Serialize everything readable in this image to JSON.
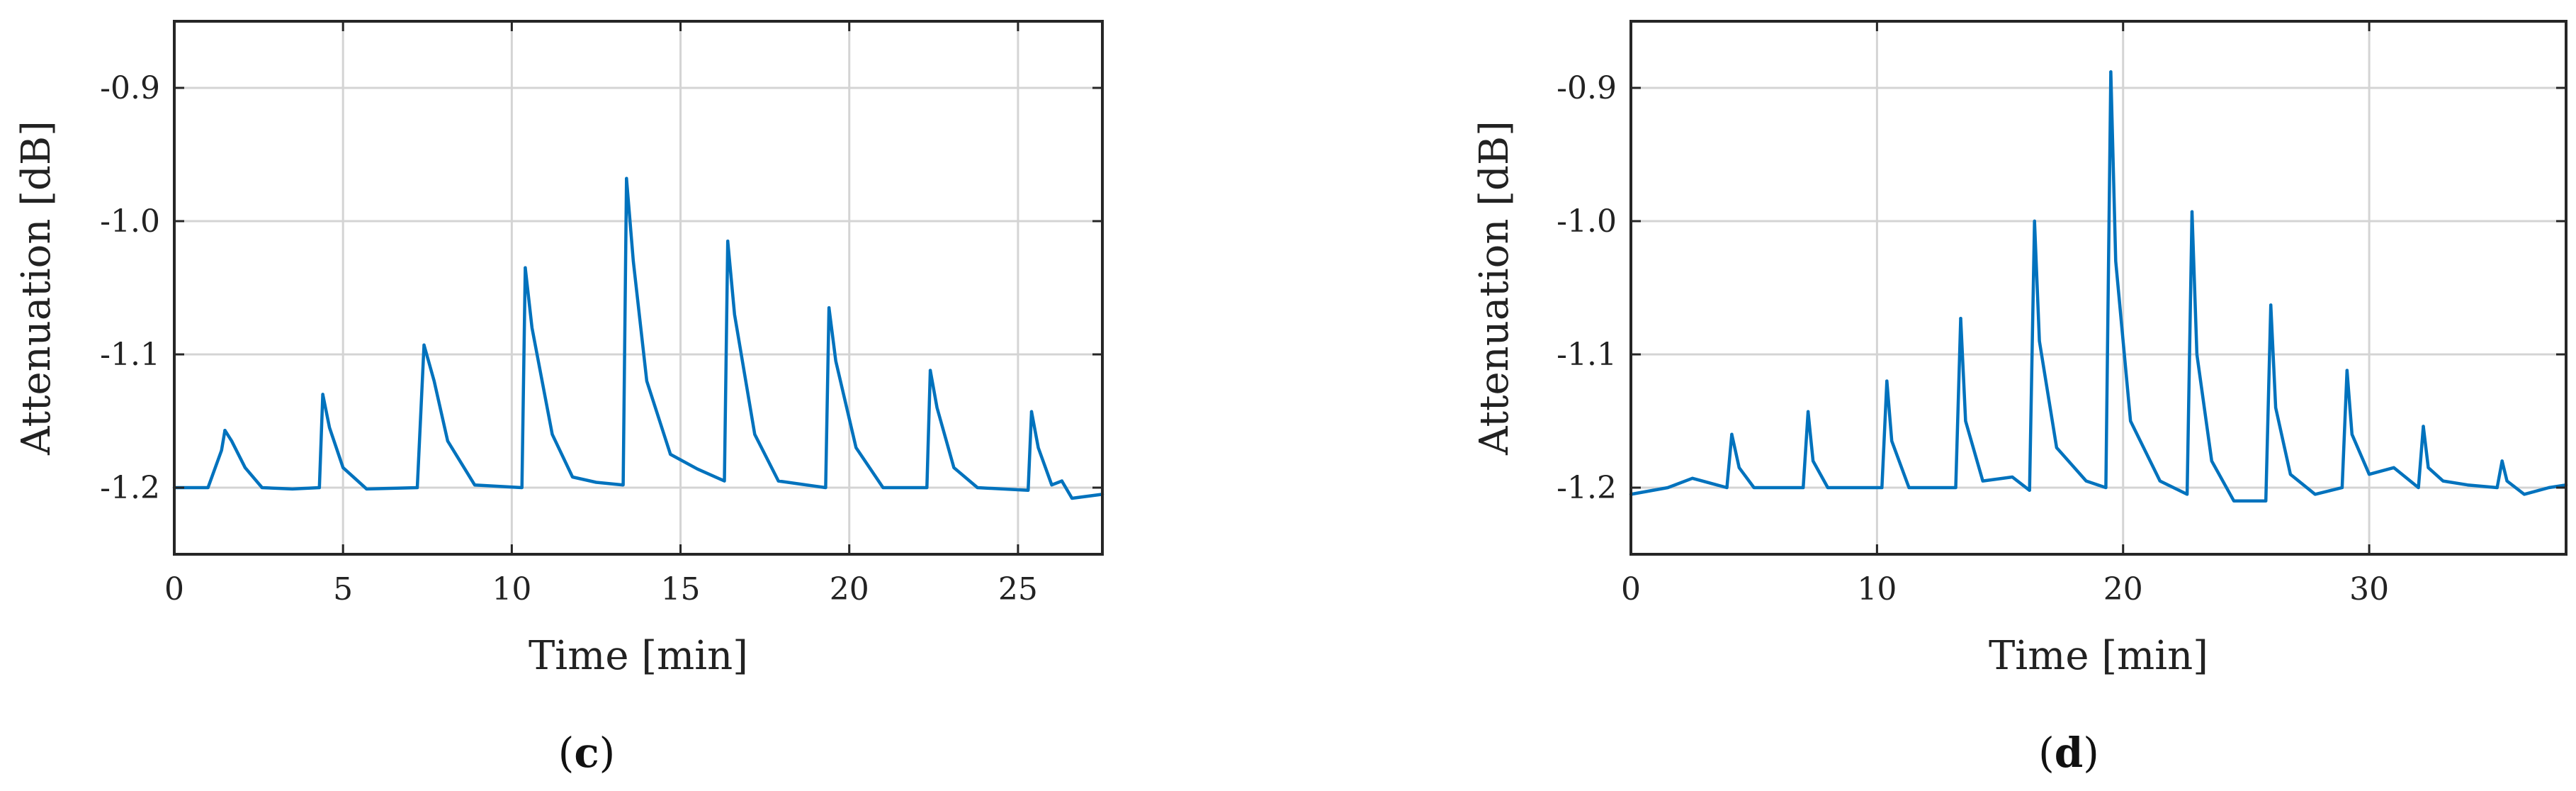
{
  "chart_data": [
    {
      "type": "line",
      "panel_label": "c",
      "xlabel": "Time [min]",
      "ylabel": "Attenuation [dB]",
      "xlim": [
        0,
        27.5
      ],
      "ylim": [
        -1.25,
        -0.85
      ],
      "xticks": [
        0,
        5,
        10,
        15,
        20,
        25
      ],
      "xtick_labels": [
        "0",
        "5",
        "10",
        "15",
        "20",
        "25"
      ],
      "yticks": [
        -0.9,
        -1.0,
        -1.1,
        -1.2
      ],
      "ytick_labels": [
        "-0.9",
        "-1.0",
        "-1.1",
        "-1.2"
      ],
      "grid": true,
      "color": "#0072BD",
      "baseline": -1.2,
      "peaks": [
        {
          "x": 1.5,
          "y": -1.157
        },
        {
          "x": 4.4,
          "y": -1.13
        },
        {
          "x": 7.4,
          "y": -1.093
        },
        {
          "x": 10.4,
          "y": -1.035
        },
        {
          "x": 13.4,
          "y": -0.968
        },
        {
          "x": 16.4,
          "y": -1.015
        },
        {
          "x": 19.4,
          "y": -1.065
        },
        {
          "x": 22.4,
          "y": -1.112
        },
        {
          "x": 25.4,
          "y": -1.143
        },
        {
          "x": 26.3,
          "y": -1.195
        }
      ],
      "series": [
        {
          "x": [
            0,
            1.0,
            1.4,
            1.5,
            1.7,
            2.1,
            2.6,
            3.5,
            4.3,
            4.4,
            4.6,
            5.0,
            5.7,
            7.2,
            7.4,
            7.7,
            8.1,
            8.9,
            10.3,
            10.4,
            10.6,
            11.2,
            11.8,
            12.5,
            13.3,
            13.4,
            13.6,
            14.0,
            14.7,
            15.5,
            16.3,
            16.4,
            16.6,
            17.2,
            17.9,
            19.3,
            19.4,
            19.6,
            20.2,
            21.0,
            22.3,
            22.4,
            22.6,
            23.1,
            23.8,
            25.3,
            25.4,
            25.6,
            26.0,
            26.3,
            26.6,
            27.5
          ],
          "y": [
            -1.2,
            -1.2,
            -1.172,
            -1.157,
            -1.165,
            -1.185,
            -1.2,
            -1.201,
            -1.2,
            -1.13,
            -1.155,
            -1.185,
            -1.201,
            -1.2,
            -1.093,
            -1.12,
            -1.165,
            -1.198,
            -1.2,
            -1.035,
            -1.08,
            -1.16,
            -1.192,
            -1.196,
            -1.198,
            -0.968,
            -1.03,
            -1.12,
            -1.175,
            -1.186,
            -1.195,
            -1.015,
            -1.07,
            -1.16,
            -1.195,
            -1.2,
            -1.065,
            -1.105,
            -1.17,
            -1.2,
            -1.2,
            -1.112,
            -1.14,
            -1.185,
            -1.2,
            -1.202,
            -1.143,
            -1.17,
            -1.198,
            -1.195,
            -1.208,
            -1.205
          ]
        }
      ]
    },
    {
      "type": "line",
      "panel_label": "d",
      "xlabel": "Time [min]",
      "ylabel": "Attenuation [dB]",
      "xlim": [
        0,
        38
      ],
      "ylim": [
        -1.25,
        -0.85
      ],
      "xticks": [
        0,
        10,
        20,
        30
      ],
      "xtick_labels": [
        "0",
        "10",
        "20",
        "30"
      ],
      "yticks": [
        -0.9,
        -1.0,
        -1.1,
        -1.2
      ],
      "ytick_labels": [
        "-0.9",
        "-1.0",
        "-1.1",
        "-1.2"
      ],
      "grid": true,
      "color": "#0072BD",
      "baseline": -1.2,
      "peaks": [
        {
          "x": 4.1,
          "y": -1.16
        },
        {
          "x": 7.2,
          "y": -1.143
        },
        {
          "x": 10.4,
          "y": -1.12
        },
        {
          "x": 13.4,
          "y": -1.073
        },
        {
          "x": 16.4,
          "y": -1.0
        },
        {
          "x": 19.5,
          "y": -0.888
        },
        {
          "x": 22.8,
          "y": -0.993
        },
        {
          "x": 26.0,
          "y": -1.063
        },
        {
          "x": 29.1,
          "y": -1.112
        },
        {
          "x": 32.2,
          "y": -1.154
        },
        {
          "x": 35.4,
          "y": -1.18
        }
      ],
      "series": [
        {
          "x": [
            0,
            1.5,
            2.5,
            3.9,
            4.1,
            4.4,
            5.0,
            7.0,
            7.2,
            7.4,
            8.0,
            10.2,
            10.4,
            10.6,
            11.3,
            13.2,
            13.4,
            13.6,
            14.3,
            15.5,
            16.2,
            16.4,
            16.6,
            17.3,
            18.5,
            19.3,
            19.5,
            19.7,
            20.3,
            21.5,
            22.6,
            22.8,
            23.0,
            23.6,
            24.5,
            25.8,
            26.0,
            26.2,
            26.8,
            27.8,
            28.9,
            29.1,
            29.3,
            30.0,
            31.0,
            32.0,
            32.2,
            32.4,
            33.0,
            34.0,
            35.2,
            35.4,
            35.6,
            36.3,
            37.3,
            38.0
          ],
          "y": [
            -1.205,
            -1.2,
            -1.193,
            -1.2,
            -1.16,
            -1.185,
            -1.2,
            -1.2,
            -1.143,
            -1.18,
            -1.2,
            -1.2,
            -1.12,
            -1.165,
            -1.2,
            -1.2,
            -1.073,
            -1.15,
            -1.195,
            -1.192,
            -1.202,
            -1.0,
            -1.09,
            -1.17,
            -1.195,
            -1.2,
            -0.888,
            -1.03,
            -1.15,
            -1.195,
            -1.205,
            -0.993,
            -1.1,
            -1.18,
            -1.21,
            -1.21,
            -1.063,
            -1.14,
            -1.19,
            -1.205,
            -1.2,
            -1.112,
            -1.16,
            -1.19,
            -1.185,
            -1.2,
            -1.154,
            -1.185,
            -1.195,
            -1.198,
            -1.2,
            -1.18,
            -1.195,
            -1.205,
            -1.2,
            -1.198
          ]
        }
      ]
    }
  ]
}
